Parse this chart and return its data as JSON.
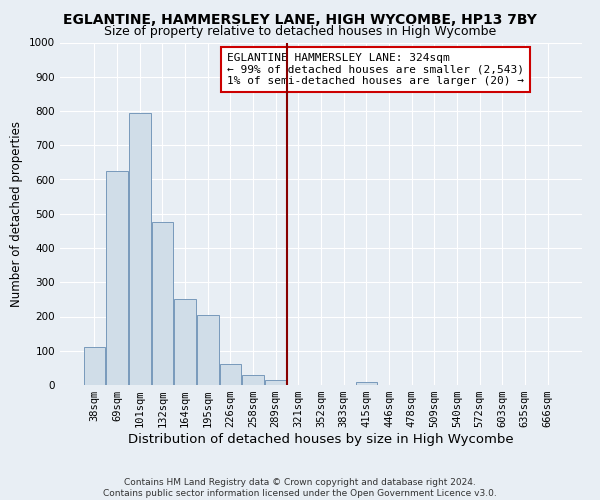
{
  "title": "EGLANTINE, HAMMERSLEY LANE, HIGH WYCOMBE, HP13 7BY",
  "subtitle": "Size of property relative to detached houses in High Wycombe",
  "xlabel": "Distribution of detached houses by size in High Wycombe",
  "ylabel": "Number of detached properties",
  "bar_labels": [
    "38sqm",
    "69sqm",
    "101sqm",
    "132sqm",
    "164sqm",
    "195sqm",
    "226sqm",
    "258sqm",
    "289sqm",
    "321sqm",
    "352sqm",
    "383sqm",
    "415sqm",
    "446sqm",
    "478sqm",
    "509sqm",
    "540sqm",
    "572sqm",
    "603sqm",
    "635sqm",
    "666sqm"
  ],
  "bar_values": [
    110,
    625,
    795,
    475,
    250,
    205,
    60,
    30,
    15,
    0,
    0,
    0,
    10,
    0,
    0,
    0,
    0,
    0,
    0,
    0,
    0
  ],
  "bar_color": "#d0dde8",
  "bar_edge_color": "#7799bb",
  "vline_x": 9.0,
  "vline_color": "#880000",
  "ylim": [
    0,
    1000
  ],
  "yticks": [
    0,
    100,
    200,
    300,
    400,
    500,
    600,
    700,
    800,
    900,
    1000
  ],
  "annotation_title": "EGLANTINE HAMMERSLEY LANE: 324sqm",
  "annotation_line1": "← 99% of detached houses are smaller (2,543)",
  "annotation_line2": "1% of semi-detached houses are larger (20) →",
  "annotation_box_facecolor": "#ffffff",
  "annotation_box_edgecolor": "#cc0000",
  "footer_line1": "Contains HM Land Registry data © Crown copyright and database right 2024.",
  "footer_line2": "Contains public sector information licensed under the Open Government Licence v3.0.",
  "background_color": "#e8eef4",
  "grid_color": "#ffffff",
  "title_fontsize": 10,
  "subtitle_fontsize": 9,
  "xlabel_fontsize": 9.5,
  "ylabel_fontsize": 8.5,
  "tick_fontsize": 7.5,
  "annot_fontsize": 8,
  "footer_fontsize": 6.5
}
